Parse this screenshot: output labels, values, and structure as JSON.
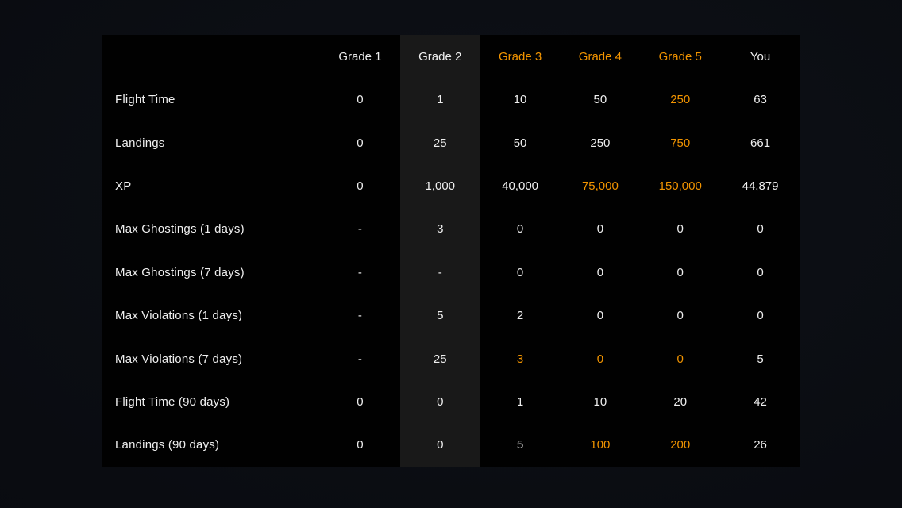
{
  "colors": {
    "accent": "#f29400",
    "text": "#efefef",
    "panel_background": "#010101",
    "grade2_column_background": "#191919",
    "page_background": "#0a0c11"
  },
  "table": {
    "headers": [
      {
        "label": "Grade 1",
        "highlight": false
      },
      {
        "label": "Grade 2",
        "highlight": false
      },
      {
        "label": "Grade 3",
        "highlight": true
      },
      {
        "label": "Grade 4",
        "highlight": true
      },
      {
        "label": "Grade 5",
        "highlight": true
      },
      {
        "label": "You",
        "highlight": false
      }
    ],
    "rows": [
      {
        "label": "Flight Time",
        "cells": [
          {
            "v": "0"
          },
          {
            "v": "1"
          },
          {
            "v": "10"
          },
          {
            "v": "50"
          },
          {
            "v": "250",
            "hl": true
          },
          {
            "v": "63"
          }
        ]
      },
      {
        "label": "Landings",
        "cells": [
          {
            "v": "0"
          },
          {
            "v": "25"
          },
          {
            "v": "50"
          },
          {
            "v": "250"
          },
          {
            "v": "750",
            "hl": true
          },
          {
            "v": "661"
          }
        ]
      },
      {
        "label": "XP",
        "cells": [
          {
            "v": "0"
          },
          {
            "v": "1,000"
          },
          {
            "v": "40,000"
          },
          {
            "v": "75,000",
            "hl": true
          },
          {
            "v": "150,000",
            "hl": true
          },
          {
            "v": "44,879"
          }
        ]
      },
      {
        "label": "Max Ghostings (1 days)",
        "cells": [
          {
            "v": "-"
          },
          {
            "v": "3"
          },
          {
            "v": "0"
          },
          {
            "v": "0"
          },
          {
            "v": "0"
          },
          {
            "v": "0"
          }
        ]
      },
      {
        "label": "Max Ghostings (7 days)",
        "cells": [
          {
            "v": "-"
          },
          {
            "v": "-"
          },
          {
            "v": "0"
          },
          {
            "v": "0"
          },
          {
            "v": "0"
          },
          {
            "v": "0"
          }
        ]
      },
      {
        "label": "Max Violations (1 days)",
        "cells": [
          {
            "v": "-"
          },
          {
            "v": "5"
          },
          {
            "v": "2"
          },
          {
            "v": "0"
          },
          {
            "v": "0"
          },
          {
            "v": "0"
          }
        ]
      },
      {
        "label": "Max Violations (7 days)",
        "cells": [
          {
            "v": "-"
          },
          {
            "v": "25"
          },
          {
            "v": "3",
            "hl": true
          },
          {
            "v": "0",
            "hl": true
          },
          {
            "v": "0",
            "hl": true
          },
          {
            "v": "5"
          }
        ]
      },
      {
        "label": "Flight Time (90 days)",
        "cells": [
          {
            "v": "0"
          },
          {
            "v": "0"
          },
          {
            "v": "1"
          },
          {
            "v": "10"
          },
          {
            "v": "20"
          },
          {
            "v": "42"
          }
        ]
      },
      {
        "label": "Landings (90 days)",
        "cells": [
          {
            "v": "0"
          },
          {
            "v": "0"
          },
          {
            "v": "5"
          },
          {
            "v": "100",
            "hl": true
          },
          {
            "v": "200",
            "hl": true
          },
          {
            "v": "26"
          }
        ]
      }
    ]
  }
}
